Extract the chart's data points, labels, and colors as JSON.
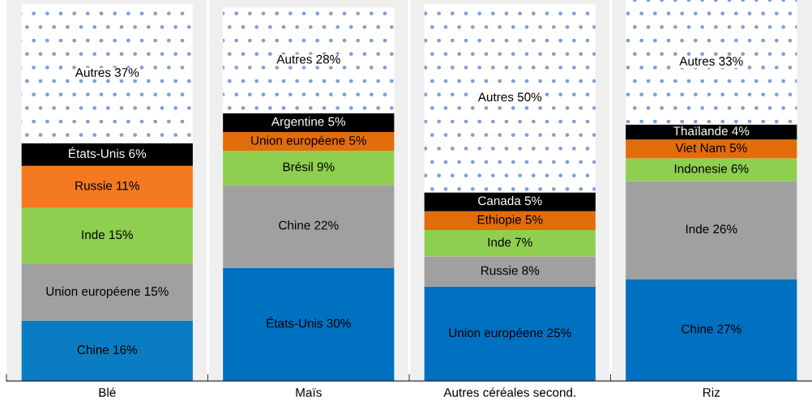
{
  "chart_data": {
    "type": "bar",
    "stacked": true,
    "categories": [
      "Blé",
      "Maïs",
      "Autres céréales second.",
      "Riz"
    ],
    "ylim": [
      0,
      101
    ],
    "series": [
      {
        "colors": [
          "#0a7cc1",
          "#0070c0",
          "#0070c0",
          "#0070c0"
        ],
        "values": [
          16,
          30,
          25,
          27
        ],
        "value_labels": [
          "Chine 16%",
          "États-Unis 30%",
          "Union européene 25%",
          "Chine 27%"
        ]
      },
      {
        "colors": [
          "#a0a0a0",
          "#a0a0a0",
          "#a0a0a0",
          "#a0a0a0"
        ],
        "values": [
          15,
          22,
          8,
          26
        ],
        "value_labels": [
          "Union européene 15%",
          "Chine 22%",
          "Russie 8%",
          "Inde 26%"
        ]
      },
      {
        "colors": [
          "#8fcf4f",
          "#8fcf4f",
          "#8fcf4f",
          "#8fcf4f"
        ],
        "values": [
          15,
          9,
          7,
          6
        ],
        "value_labels": [
          "Inde 15%",
          "Brésil 9%",
          "Inde 7%",
          "Indonesie 6%"
        ]
      },
      {
        "colors": [
          "#f47a20",
          "#e36c0a",
          "#e36c0a",
          "#e36c0a"
        ],
        "values": [
          11,
          5,
          5,
          5
        ],
        "value_labels": [
          "Russie 11%",
          "Union européene 5%",
          "Ethiopie 5%",
          "Viet Nam 5%"
        ]
      },
      {
        "colors": [
          "#000000",
          "#000000",
          "#000000",
          "#000000"
        ],
        "values": [
          6,
          5,
          5,
          4
        ],
        "value_labels": [
          "États-Unis 6%",
          "Argentine 5%",
          "Canada 5%",
          "Thaïlande 4%"
        ]
      },
      {
        "colors": [
          "#ffffff",
          "#ffffff",
          "#ffffff",
          "#ffffff"
        ],
        "values": [
          37,
          28,
          50,
          33
        ],
        "value_labels": [
          "Autres 37%",
          "Autres 28%",
          "Autres 50%",
          "Autres 33%"
        ]
      }
    ]
  }
}
